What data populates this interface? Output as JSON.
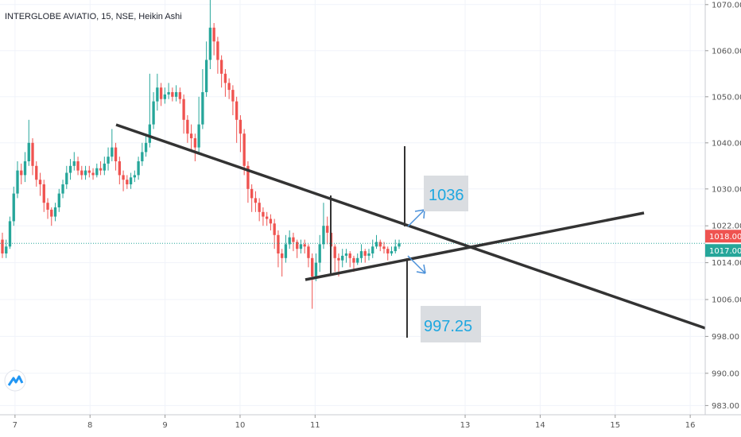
{
  "chart_data": {
    "type": "candlestick",
    "title": "INTERGLOBE AVIATIO, 15, NSE, Heikin Ashi",
    "ylim": [
      981,
      1071
    ],
    "xlim": [
      6.8,
      16.2
    ],
    "grid": true,
    "x_ticks": [
      {
        "value": 7,
        "label": "7"
      },
      {
        "value": 8,
        "label": "8"
      },
      {
        "value": 9,
        "label": "9"
      },
      {
        "value": 10,
        "label": "10"
      },
      {
        "value": 11,
        "label": "11"
      },
      {
        "value": 13,
        "label": "13"
      },
      {
        "value": 14,
        "label": "14"
      },
      {
        "value": 15,
        "label": "15"
      },
      {
        "value": 16,
        "label": "16"
      }
    ],
    "y_ticks": [
      {
        "value": 983,
        "label": "983.00"
      },
      {
        "value": 990,
        "label": "990.00"
      },
      {
        "value": 998,
        "label": "998.00"
      },
      {
        "value": 1006,
        "label": "1006.00"
      },
      {
        "value": 1014,
        "label": "1014.00"
      },
      {
        "value": 1022,
        "label": "1022.00"
      },
      {
        "value": 1030,
        "label": "1030.00"
      },
      {
        "value": 1040,
        "label": "1040.00"
      },
      {
        "value": 1050,
        "label": "1050.00"
      },
      {
        "value": 1060,
        "label": "1060.00"
      },
      {
        "value": 1070,
        "label": "1070.00"
      }
    ],
    "price_labels": [
      {
        "value": 1018.0,
        "label": "1018.00",
        "color": "#ef5350"
      },
      {
        "value": 1017.0,
        "label": "1017.00",
        "color": "#26a69a"
      }
    ],
    "current_price": 1018.2,
    "candles": [
      [
        1019.0,
        1016.0,
        1020.5,
        1015.0
      ],
      [
        1016.0,
        1017.5,
        1019.0,
        1015.0
      ],
      [
        1017.5,
        1023.0,
        1024.0,
        1017.0
      ],
      [
        1023.0,
        1029.0,
        1030.5,
        1022.0
      ],
      [
        1029.0,
        1034.0,
        1036.0,
        1028.0
      ],
      [
        1034.0,
        1033.0,
        1035.5,
        1031.0
      ],
      [
        1033.0,
        1036.0,
        1038.0,
        1031.5
      ],
      [
        1036.0,
        1040.0,
        1045.0,
        1035.0
      ],
      [
        1040.0,
        1035.0,
        1041.0,
        1033.0
      ],
      [
        1035.0,
        1032.0,
        1036.0,
        1030.5
      ],
      [
        1032.0,
        1031.0,
        1033.5,
        1028.5
      ],
      [
        1031.0,
        1027.0,
        1032.0,
        1025.0
      ],
      [
        1027.0,
        1025.5,
        1028.0,
        1023.5
      ],
      [
        1025.5,
        1024.0,
        1026.0,
        1022.0
      ],
      [
        1024.0,
        1026.0,
        1027.0,
        1023.0
      ],
      [
        1026.0,
        1029.0,
        1030.0,
        1025.0
      ],
      [
        1029.0,
        1031.0,
        1032.0,
        1028.0
      ],
      [
        1031.0,
        1033.5,
        1035.0,
        1030.0
      ],
      [
        1033.5,
        1035.0,
        1036.5,
        1032.0
      ],
      [
        1035.0,
        1036.0,
        1038.0,
        1034.0
      ],
      [
        1036.0,
        1034.0,
        1037.0,
        1033.0
      ],
      [
        1034.0,
        1033.0,
        1035.0,
        1032.0
      ],
      [
        1033.0,
        1034.0,
        1035.0,
        1032.0
      ],
      [
        1034.0,
        1033.5,
        1035.0,
        1032.5
      ],
      [
        1033.5,
        1033.0,
        1034.5,
        1032.0
      ],
      [
        1033.0,
        1034.5,
        1035.5,
        1032.5
      ],
      [
        1034.5,
        1034.0,
        1036.0,
        1033.0
      ],
      [
        1034.0,
        1035.5,
        1037.0,
        1033.0
      ],
      [
        1035.5,
        1037.0,
        1039.0,
        1034.0
      ],
      [
        1037.0,
        1039.0,
        1043.0,
        1036.0
      ],
      [
        1039.0,
        1036.0,
        1040.0,
        1034.0
      ],
      [
        1036.0,
        1033.0,
        1037.0,
        1031.0
      ],
      [
        1033.0,
        1032.0,
        1034.0,
        1029.5
      ],
      [
        1032.0,
        1031.0,
        1033.0,
        1030.0
      ],
      [
        1031.0,
        1032.5,
        1033.5,
        1030.0
      ],
      [
        1032.5,
        1033.0,
        1034.0,
        1031.5
      ],
      [
        1033.0,
        1036.0,
        1037.0,
        1032.0
      ],
      [
        1036.0,
        1038.0,
        1040.0,
        1035.0
      ],
      [
        1038.0,
        1040.0,
        1042.0,
        1037.0
      ],
      [
        1040.0,
        1044.0,
        1055.0,
        1039.0
      ],
      [
        1044.0,
        1049.0,
        1051.0,
        1043.0
      ],
      [
        1049.0,
        1052.0,
        1055.0,
        1047.0
      ],
      [
        1052.0,
        1049.5,
        1053.0,
        1048.0
      ],
      [
        1049.5,
        1050.5,
        1052.0,
        1048.5
      ],
      [
        1050.5,
        1051.0,
        1053.0,
        1049.5
      ],
      [
        1051.0,
        1050.0,
        1052.0,
        1049.0
      ],
      [
        1050.0,
        1051.0,
        1052.5,
        1049.0
      ],
      [
        1051.0,
        1049.5,
        1052.0,
        1048.5
      ],
      [
        1049.5,
        1045.0,
        1050.5,
        1042.0
      ],
      [
        1045.0,
        1042.0,
        1046.0,
        1040.0
      ],
      [
        1042.0,
        1041.0,
        1044.0,
        1038.0
      ],
      [
        1041.0,
        1039.0,
        1042.0,
        1036.0
      ],
      [
        1039.0,
        1044.0,
        1050.0,
        1038.0
      ],
      [
        1044.0,
        1051.0,
        1056.0,
        1043.0
      ],
      [
        1051.0,
        1058.0,
        1062.0,
        1050.0
      ],
      [
        1058.0,
        1065.0,
        1071.0,
        1056.0
      ],
      [
        1065.0,
        1062.0,
        1066.0,
        1059.0
      ],
      [
        1062.0,
        1058.0,
        1063.0,
        1055.0
      ],
      [
        1058.0,
        1055.0,
        1059.0,
        1052.0
      ],
      [
        1055.0,
        1053.0,
        1056.0,
        1050.0
      ],
      [
        1053.0,
        1051.5,
        1054.0,
        1049.5
      ],
      [
        1051.5,
        1049.0,
        1052.5,
        1046.0
      ],
      [
        1049.0,
        1045.0,
        1050.0,
        1040.0
      ],
      [
        1045.0,
        1042.0,
        1046.0,
        1038.0
      ],
      [
        1042.0,
        1035.0,
        1043.0,
        1033.0
      ],
      [
        1035.0,
        1030.0,
        1036.0,
        1027.0
      ],
      [
        1030.0,
        1028.0,
        1031.0,
        1025.0
      ],
      [
        1028.0,
        1027.0,
        1029.5,
        1025.0
      ],
      [
        1027.0,
        1025.0,
        1028.0,
        1023.0
      ],
      [
        1025.0,
        1024.0,
        1026.0,
        1022.0
      ],
      [
        1024.0,
        1023.5,
        1025.0,
        1022.0
      ],
      [
        1023.5,
        1022.5,
        1024.5,
        1021.0
      ],
      [
        1022.5,
        1020.0,
        1023.5,
        1017.0
      ],
      [
        1020.0,
        1016.0,
        1021.0,
        1013.0
      ],
      [
        1016.0,
        1015.0,
        1017.0,
        1011.0
      ],
      [
        1015.0,
        1018.0,
        1020.0,
        1014.0
      ],
      [
        1018.0,
        1019.5,
        1021.0,
        1017.0
      ],
      [
        1019.5,
        1018.5,
        1020.5,
        1016.5
      ],
      [
        1018.5,
        1017.0,
        1019.0,
        1015.0
      ],
      [
        1017.0,
        1018.0,
        1019.0,
        1016.0
      ],
      [
        1018.0,
        1017.5,
        1019.0,
        1016.0
      ],
      [
        1017.5,
        1015.0,
        1018.0,
        1013.0
      ],
      [
        1015.0,
        1011.0,
        1016.0,
        1004.0
      ],
      [
        1011.0,
        1014.0,
        1016.0,
        1010.0
      ],
      [
        1014.0,
        1018.0,
        1020.0,
        1012.0
      ],
      [
        1018.0,
        1022.0,
        1027.0,
        1017.0
      ],
      [
        1022.0,
        1020.5,
        1024.0,
        1018.0
      ],
      [
        1020.5,
        1017.5,
        1021.0,
        1015.0
      ],
      [
        1017.5,
        1015.0,
        1018.0,
        1012.0
      ],
      [
        1015.0,
        1014.5,
        1016.0,
        1011.0
      ],
      [
        1014.5,
        1015.5,
        1017.0,
        1013.0
      ],
      [
        1015.5,
        1016.0,
        1017.0,
        1014.0
      ],
      [
        1016.0,
        1015.0,
        1016.5,
        1013.0
      ],
      [
        1015.0,
        1014.0,
        1015.5,
        1012.0
      ],
      [
        1014.0,
        1015.0,
        1016.0,
        1013.5
      ],
      [
        1015.0,
        1016.5,
        1018.0,
        1014.0
      ],
      [
        1016.5,
        1015.5,
        1017.0,
        1014.0
      ],
      [
        1015.5,
        1016.0,
        1017.0,
        1014.5
      ],
      [
        1016.0,
        1017.5,
        1019.0,
        1015.0
      ],
      [
        1017.5,
        1018.5,
        1020.0,
        1017.0
      ],
      [
        1018.5,
        1017.5,
        1019.0,
        1016.5
      ],
      [
        1017.5,
        1017.0,
        1018.5,
        1016.0
      ],
      [
        1017.0,
        1016.0,
        1017.5,
        1014.5
      ],
      [
        1016.0,
        1016.5,
        1017.5,
        1015.5
      ],
      [
        1016.5,
        1017.5,
        1019.0,
        1016.0
      ],
      [
        1017.5,
        1018.2,
        1019.0,
        1017.0
      ]
    ],
    "annotations": [
      {
        "label": "1036",
        "price": 1036,
        "color": "#1ea7e0"
      },
      {
        "label": "997.25",
        "price": 997.25,
        "color": "#1ea7e0"
      }
    ]
  },
  "colors": {
    "up": "#26a69a",
    "down": "#ef5350",
    "line": "#333333",
    "grid": "#f0f3fa",
    "arrow": "#4a90d9"
  },
  "logo": {
    "icon": "tradingview-logo-icon"
  }
}
